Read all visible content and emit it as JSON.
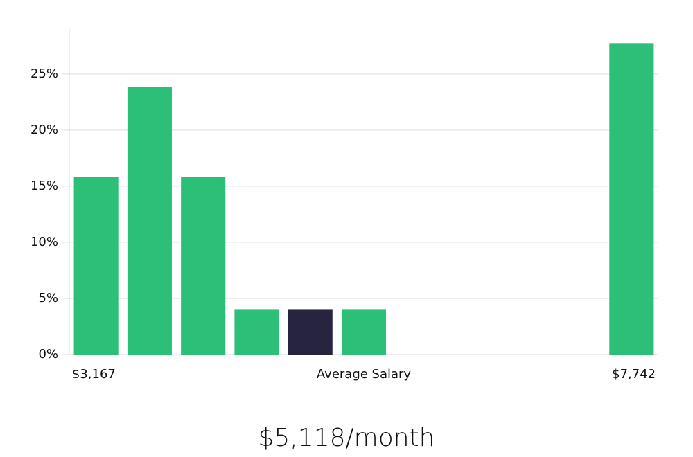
{
  "chart_data": {
    "type": "bar",
    "categories": [
      "$3,167",
      null,
      null,
      null,
      null,
      null,
      null,
      null,
      null,
      null,
      "$7,742"
    ],
    "values": [
      15.8,
      23.8,
      15.8,
      4,
      4,
      4,
      0,
      0,
      0,
      0,
      27.7
    ],
    "colors": [
      "#2bbf77",
      "#2bbf77",
      "#2bbf77",
      "#2bbf77",
      "#27243f",
      "#2bbf77",
      "#2bbf77",
      "#2bbf77",
      "#2bbf77",
      "#2bbf77",
      "#2bbf77"
    ],
    "x_label": "Average Salary",
    "annotation": "$5,118/month",
    "ylim": [
      0,
      29
    ],
    "yticks": [
      {
        "value": 0,
        "label": "0%"
      },
      {
        "value": 5,
        "label": "5%"
      },
      {
        "value": 10,
        "label": "10%"
      },
      {
        "value": 15,
        "label": "15%"
      },
      {
        "value": 20,
        "label": "20%"
      },
      {
        "value": 25,
        "label": "25%"
      }
    ],
    "grid": true
  }
}
